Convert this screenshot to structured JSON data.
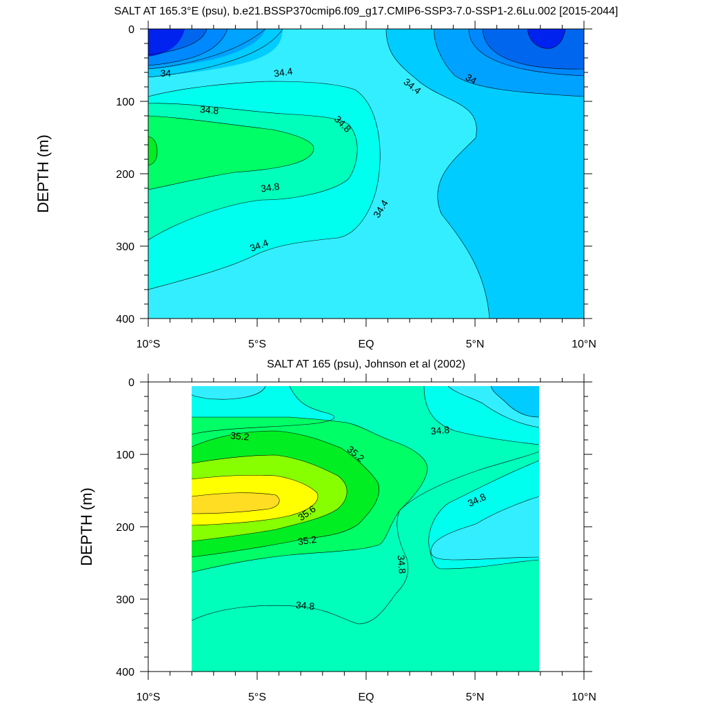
{
  "chart_data": [
    {
      "type": "contour",
      "title": "SALT AT 165.3°E (psu), b.e21.BSSP370cmip6.f09_g17.CMIP6-SSP3-7.0-SSP1-2.6Lu.002 [2015-2044]",
      "ylabel": "DEPTH (m)",
      "xlabel": "",
      "xlim": [
        -10,
        10
      ],
      "ylim": [
        400,
        0
      ],
      "x_ticks": [
        {
          "value": -10,
          "label": "10°S"
        },
        {
          "value": -5,
          "label": "5°S"
        },
        {
          "value": 0,
          "label": "EQ"
        },
        {
          "value": 5,
          "label": "5°N"
        },
        {
          "value": 10,
          "label": "10°N"
        }
      ],
      "y_ticks": [
        {
          "value": 0,
          "label": "0"
        },
        {
          "value": 100,
          "label": "100"
        },
        {
          "value": 200,
          "label": "200"
        },
        {
          "value": 300,
          "label": "300"
        },
        {
          "value": 400,
          "label": "400"
        }
      ],
      "contour_labels": [
        {
          "text": "34",
          "x": -9.2,
          "y": 62,
          "angle": 0
        },
        {
          "text": "34.4",
          "x": -3.8,
          "y": 61,
          "angle": -8
        },
        {
          "text": "34.4",
          "x": 2.1,
          "y": 80,
          "angle": 38
        },
        {
          "text": "34",
          "x": 4.8,
          "y": 70,
          "angle": 30
        },
        {
          "text": "34.8",
          "x": -7.2,
          "y": 113,
          "angle": 5
        },
        {
          "text": "34.8",
          "x": -1.1,
          "y": 132,
          "angle": 45
        },
        {
          "text": "34.8",
          "x": -4.4,
          "y": 220,
          "angle": -8
        },
        {
          "text": "34.4",
          "x": 0.7,
          "y": 249,
          "angle": -58
        },
        {
          "text": "34.4",
          "x": -4.9,
          "y": 300,
          "angle": -20
        }
      ]
    },
    {
      "type": "contour",
      "title": "SALT AT 165 (psu), Johnson et al (2002)",
      "ylabel": "DEPTH (m)",
      "xlabel": "",
      "xlim": [
        -10,
        10
      ],
      "ylim": [
        400,
        0
      ],
      "x_ticks": [
        {
          "value": -10,
          "label": "10°S"
        },
        {
          "value": -5,
          "label": "5°S"
        },
        {
          "value": 0,
          "label": "EQ"
        },
        {
          "value": 5,
          "label": "5°N"
        },
        {
          "value": 10,
          "label": "10°N"
        }
      ],
      "y_ticks": [
        {
          "value": 0,
          "label": "0"
        },
        {
          "value": 100,
          "label": "100"
        },
        {
          "value": 200,
          "label": "200"
        },
        {
          "value": 300,
          "label": "300"
        },
        {
          "value": 400,
          "label": "400"
        }
      ],
      "contour_labels": [
        {
          "text": "35.2",
          "x": -5.8,
          "y": 76,
          "angle": 5
        },
        {
          "text": "35.2",
          "x": -0.5,
          "y": 100,
          "angle": 40
        },
        {
          "text": "34.8",
          "x": 3.4,
          "y": 68,
          "angle": -5
        },
        {
          "text": "34.8",
          "x": 5.1,
          "y": 164,
          "angle": -25
        },
        {
          "text": "35.6",
          "x": -2.7,
          "y": 182,
          "angle": -35
        },
        {
          "text": "35.2",
          "x": -2.7,
          "y": 220,
          "angle": -8
        },
        {
          "text": "34.8",
          "x": 1.6,
          "y": 252,
          "angle": 85
        },
        {
          "text": "34.8",
          "x": -2.8,
          "y": 310,
          "angle": 5
        }
      ]
    }
  ],
  "colors": {
    "sal_lt_33_6": "#0022ee",
    "sal_33_6": "#0066ee",
    "sal_33_8": "#00a2ff",
    "sal_34": "#00ccff",
    "sal_34_2": "#00e4ff",
    "sal_34_4": "#33eeff",
    "sal_34_6": "#00ffee",
    "sal_34_8": "#00ffbb",
    "sal_35": "#00ff66",
    "sal_35_2": "#00ee22",
    "sal_35_4": "#88ff00",
    "sal_35_6": "#ffff00",
    "sal_35_8": "#ffdd22"
  }
}
